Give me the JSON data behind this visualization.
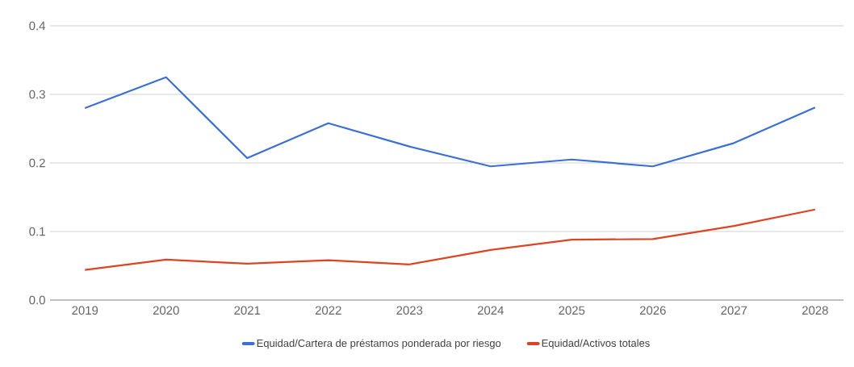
{
  "chart_data": {
    "type": "line",
    "categories": [
      "2019",
      "2020",
      "2021",
      "2022",
      "2023",
      "2024",
      "2025",
      "2026",
      "2027",
      "2028"
    ],
    "series": [
      {
        "name": "Equidad/Cartera de préstamos ponderada por riesgo",
        "color": "#3c6fd6",
        "values": [
          0.28,
          0.325,
          0.207,
          0.258,
          0.224,
          0.195,
          0.205,
          0.195,
          0.229,
          0.281
        ]
      },
      {
        "name": "Equidad/Activos totales",
        "color": "#dd4422",
        "values": [
          0.044,
          0.059,
          0.053,
          0.058,
          0.052,
          0.073,
          0.088,
          0.089,
          0.108,
          0.132
        ]
      }
    ],
    "ylim": [
      0,
      0.4
    ],
    "yticks": [
      {
        "value": 0,
        "label": "0.0"
      },
      {
        "value": 0.1,
        "label": "0.1"
      },
      {
        "value": 0.2,
        "label": "0.2"
      },
      {
        "value": 0.3,
        "label": "0.3"
      },
      {
        "value": 0.4,
        "label": "0.4"
      }
    ],
    "grid": "y",
    "legend": "bottom",
    "marker": "none",
    "line_style": "solid"
  }
}
